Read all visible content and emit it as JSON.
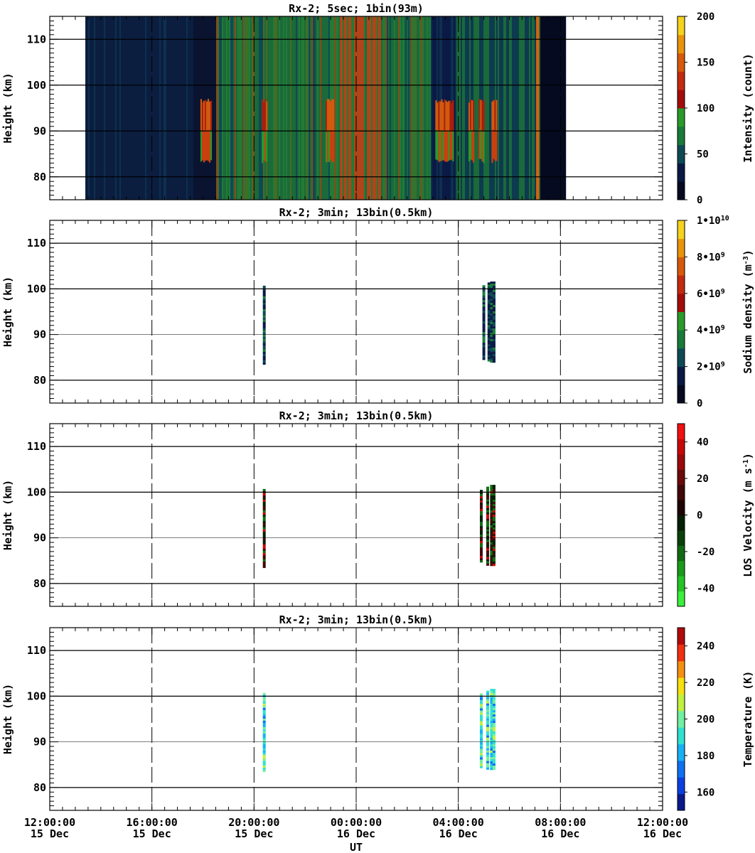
{
  "chart_data": [
    {
      "type": "heatmap",
      "title": "Rx-2;  5sec; 1bin(93m)",
      "ylabel": "Height (km)",
      "colorbar_label": "Intensity (count)",
      "colorbar_ticks": [
        "0",
        "50",
        "100",
        "150",
        "200"
      ],
      "colorbar_range": [
        0,
        200
      ],
      "colormap": [
        "#050a20",
        "#0a1a45",
        "#0e4a55",
        "#1a7a3a",
        "#2a9a2a",
        "#a40c0c",
        "#c42a10",
        "#d75a0a",
        "#e8940c",
        "#f5d21e"
      ],
      "ylim": [
        75,
        115
      ],
      "yticks": [
        "80",
        "90",
        "100",
        "110"
      ],
      "data_extent_hours": [
        1.4,
        20.2
      ],
      "bright_layer_km": [
        83,
        97
      ],
      "bright_intervals_hours": [
        [
          5.9,
          6.3
        ],
        [
          8.3,
          8.5
        ],
        [
          10.8,
          11.1
        ],
        [
          15.1,
          15.8
        ],
        [
          16.4,
          16.6
        ],
        [
          16.8,
          17.0
        ],
        [
          17.3,
          17.5
        ]
      ]
    },
    {
      "type": "heatmap",
      "title": "Rx-2; 3min; 13bin(0.5km)",
      "ylabel": "Height (km)",
      "colorbar_label": "Sodium density (m⁻³)",
      "colorbar_ticks": [
        "0",
        "2•10⁹",
        "4•10⁹",
        "6•10⁹",
        "8•10⁹",
        "1•10¹⁰"
      ],
      "colorbar_range": [
        0,
        10000000000
      ],
      "colormap": [
        "#050a20",
        "#0a1a45",
        "#0e4a55",
        "#1a7a3a",
        "#2a9a2a",
        "#a40c0c",
        "#c42a10",
        "#d75a0a",
        "#e8940c",
        "#f5d21e"
      ],
      "ylim": [
        75,
        115
      ],
      "yticks": [
        "80",
        "90",
        "100",
        "110"
      ],
      "profiles": [
        {
          "t": 8.4,
          "h": [
            83.5,
            100.7
          ]
        },
        {
          "t": 17.0,
          "h": [
            84.7,
            100.8
          ]
        },
        {
          "t": 17.2,
          "h": [
            84.3,
            101.4
          ]
        },
        {
          "t": 17.3,
          "h": [
            84.3,
            101.6
          ]
        },
        {
          "t": 17.4,
          "h": [
            84.3,
            101.6
          ]
        }
      ]
    },
    {
      "type": "heatmap",
      "title": "Rx-2; 3min; 13bin(0.5km)",
      "ylabel": "Height (km)",
      "colorbar_label": "LOS Velocity (m s⁻¹)",
      "colorbar_ticks": [
        "-40",
        "-20",
        "0",
        "20",
        "40"
      ],
      "colorbar_range": [
        -50,
        50
      ],
      "colormap": [
        "#3af03a",
        "#24c424",
        "#1a9a1a",
        "#116a11",
        "#0a400a",
        "#051e05",
        "#1e0505",
        "#400808",
        "#6a0a0a",
        "#9a0a0a",
        "#c80808",
        "#f01010"
      ],
      "ylim": [
        75,
        115
      ],
      "yticks": [
        "80",
        "90",
        "100",
        "110"
      ],
      "profiles": [
        {
          "t": 8.4,
          "h": [
            83.5,
            100.7
          ]
        },
        {
          "t": 16.9,
          "h": [
            85.0,
            100.5
          ]
        },
        {
          "t": 17.15,
          "h": [
            84.3,
            101.2
          ]
        },
        {
          "t": 17.3,
          "h": [
            84.3,
            101.6
          ]
        },
        {
          "t": 17.4,
          "h": [
            84.3,
            101.6
          ]
        }
      ]
    },
    {
      "type": "heatmap",
      "title": "Rx-2; 3min; 13bin(0.5km)",
      "ylabel": "Height (km)",
      "colorbar_label": "Temperature (K)",
      "colorbar_ticks": [
        "160",
        "180",
        "200",
        "220",
        "240"
      ],
      "colorbar_range": [
        150,
        250
      ],
      "colormap": [
        "#0a1a8a",
        "#0a40e0",
        "#1070f0",
        "#18b0f5",
        "#30e0d0",
        "#70f0a0",
        "#c0f040",
        "#f5e010",
        "#f59010",
        "#f03010",
        "#b00a0a"
      ],
      "ylim": [
        75,
        115
      ],
      "yticks": [
        "80",
        "90",
        "100",
        "110"
      ],
      "profiles": [
        {
          "t": 8.4,
          "h": [
            83.5,
            100.7
          ]
        },
        {
          "t": 16.9,
          "h": [
            84.5,
            100.6
          ]
        },
        {
          "t": 17.15,
          "h": [
            84.3,
            101.2
          ]
        },
        {
          "t": 17.3,
          "h": [
            84.3,
            101.6
          ]
        },
        {
          "t": 17.4,
          "h": [
            84.3,
            101.6
          ]
        }
      ]
    }
  ],
  "x_axis": {
    "label": "UT",
    "range_hours": [
      0,
      24
    ],
    "tick_hours": [
      0,
      4,
      8,
      12,
      16,
      20,
      24
    ],
    "tick_times": [
      "12:00:00",
      "16:00:00",
      "20:00:00",
      "00:00:00",
      "04:00:00",
      "08:00:00",
      "12:00:00"
    ],
    "tick_dates": [
      "15 Dec",
      "15 Dec",
      "15 Dec",
      "16 Dec",
      "16 Dec",
      "16 Dec",
      "16 Dec"
    ]
  }
}
